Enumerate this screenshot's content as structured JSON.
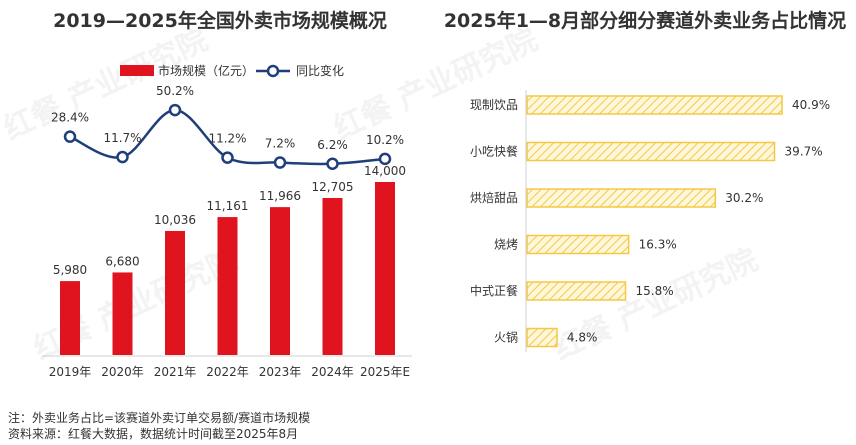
{
  "chart_data": [
    {
      "type": "bar+line",
      "title": "2019—2025年全国外卖市场规模概况",
      "categories": [
        "2019年",
        "2020年",
        "2021年",
        "2022年",
        "2023年",
        "2024年",
        "2025年E"
      ],
      "series": [
        {
          "name": "市场规模（亿元）",
          "type": "bar",
          "values": [
            5980,
            6680,
            10036,
            11161,
            11966,
            12705,
            14000
          ],
          "labels": [
            "5,980",
            "6,680",
            "10,036",
            "11,161",
            "11,966",
            "12,705",
            "14,000"
          ],
          "color": "#E0141E"
        },
        {
          "name": "同比变化",
          "type": "line",
          "values": [
            28.4,
            11.7,
            50.2,
            11.2,
            7.2,
            6.2,
            10.2
          ],
          "labels": [
            "28.4%",
            "11.7%",
            "50.2%",
            "11.2%",
            "7.2%",
            "6.2%",
            "10.2%"
          ],
          "color": "#1F3F7A"
        }
      ],
      "legend_position": "top-left",
      "grid": false
    },
    {
      "type": "bar-horizontal",
      "title": "2025年1—8月部分细分赛道外卖业务占比情况",
      "categories": [
        "现制饮品",
        "小吃快餐",
        "烘焙甜品",
        "烧烤",
        "中式正餐",
        "火锅"
      ],
      "values": [
        40.9,
        39.7,
        30.2,
        16.3,
        15.8,
        4.8
      ],
      "labels": [
        "40.9%",
        "39.7%",
        "30.2%",
        "16.3%",
        "15.8%",
        "4.8%"
      ],
      "color": "#F5C842",
      "grid": false
    }
  ],
  "footnote": {
    "note": "注：外卖业务占比=该赛道外卖订单交易额/赛道市场规模",
    "source": "资料来源：红餐大数据，数据统计时间截至2025年8月"
  },
  "watermark": "红餐 产业研究院"
}
